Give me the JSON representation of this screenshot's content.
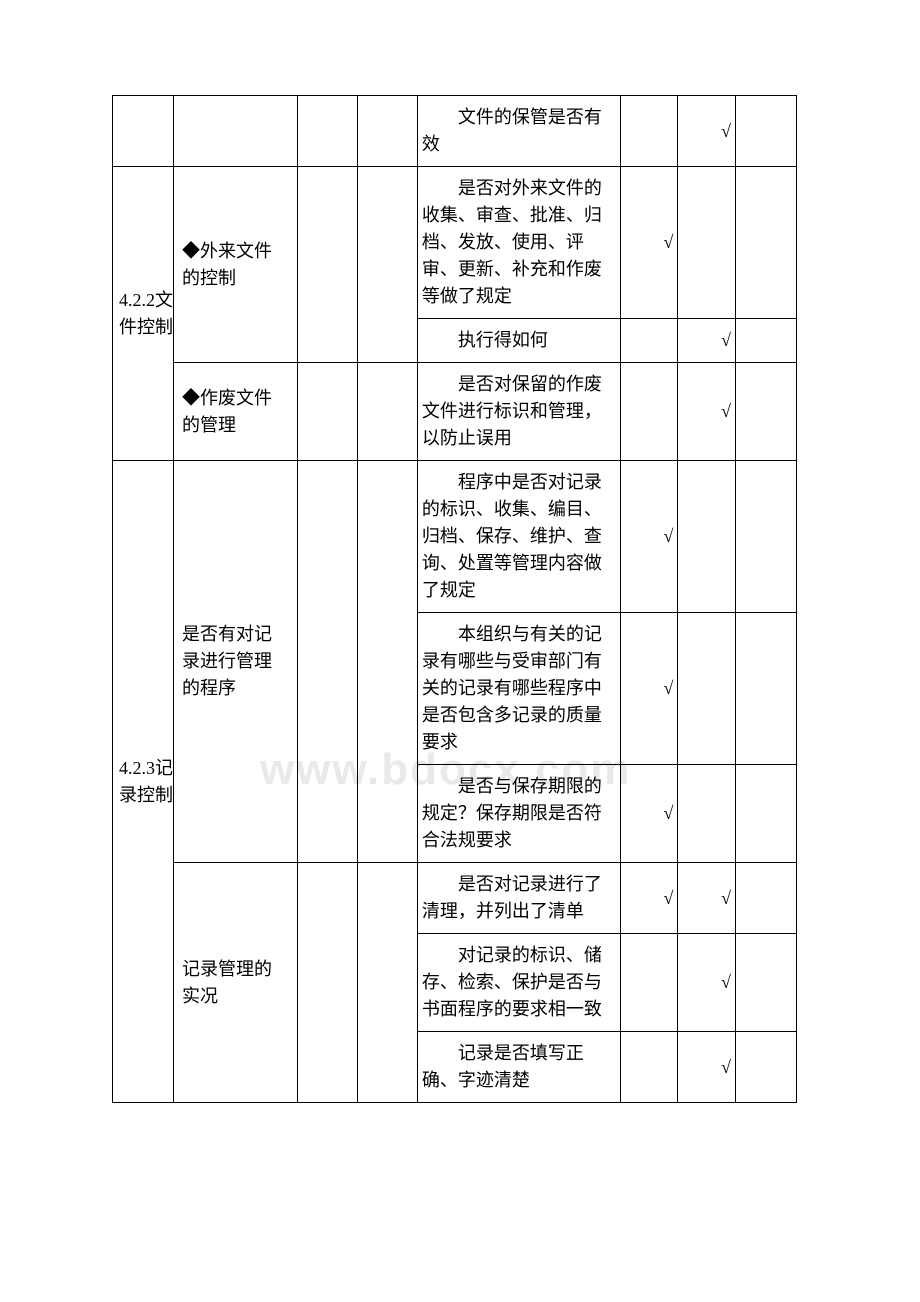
{
  "watermark": "www.bdocx.com",
  "rows": [
    {
      "c1": "",
      "c2": "",
      "q": "文件的保管是否有效",
      "c6": "",
      "c7": "√"
    },
    {
      "c1": "4.2.2文件控制",
      "c2": "◆外来文件的控制",
      "q": "是否对外来文件的收集、审查、批准、归档、发放、使用、评审、更新、补充和作废等做了规定",
      "c6": "√",
      "c7": ""
    },
    {
      "q": "执行得如何",
      "c6": "",
      "c7": "√"
    },
    {
      "c2": "◆作废文件的管理",
      "q": "是否对保留的作废文件进行标识和管理，以防止误用",
      "c6": "",
      "c7": "√"
    },
    {
      "c1": "4.2.3记录控制",
      "c2": "是否有对记录进行管理的程序",
      "q": "程序中是否对记录的标识、收集、编目、归档、保存、维护、查询、处置等管理内容做了规定",
      "c6": "√",
      "c7": ""
    },
    {
      "q": "本组织与有关的记录有哪些与受审部门有关的记录有哪些程序中是否包含多记录的质量要求",
      "c6": "√",
      "c7": ""
    },
    {
      "q": "是否与保存期限的规定？保存期限是否符合法规要求",
      "c6": "√",
      "c7": ""
    },
    {
      "c2": "记录管理的实况",
      "q": "是否对记录进行了清理，并列出了清单",
      "c6": "√",
      "c7": "√"
    },
    {
      "q": "对记录的标识、储存、检索、保护是否与书面程序的要求相一致",
      "c6": "",
      "c7": "√"
    },
    {
      "q": "记录是否填写正确、字迹清楚",
      "c6": "",
      "c7": "√"
    }
  ]
}
